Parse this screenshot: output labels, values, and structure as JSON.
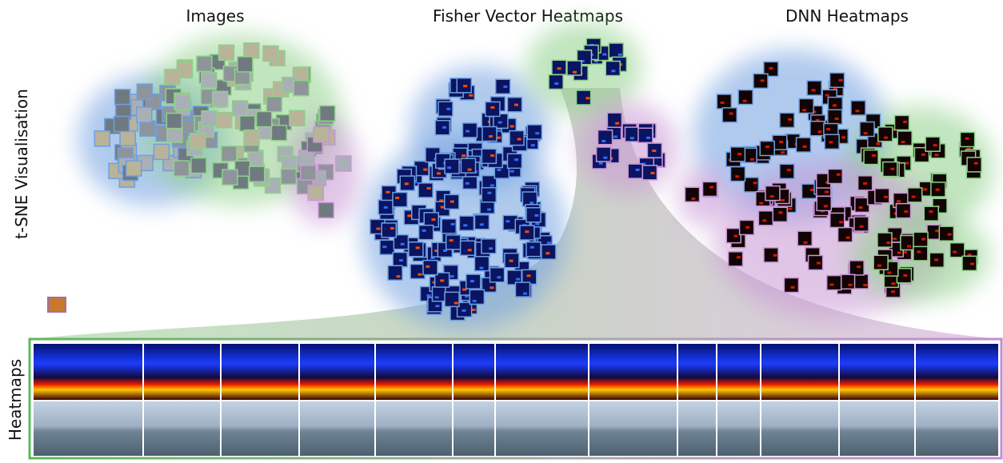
{
  "column_titles": [
    "Images",
    "Fisher Vector Heatmaps",
    "DNN Heatmaps"
  ],
  "row_labels": {
    "tsne": "t-SNE Visualisation",
    "heatmaps": "Heatmaps"
  }
}
